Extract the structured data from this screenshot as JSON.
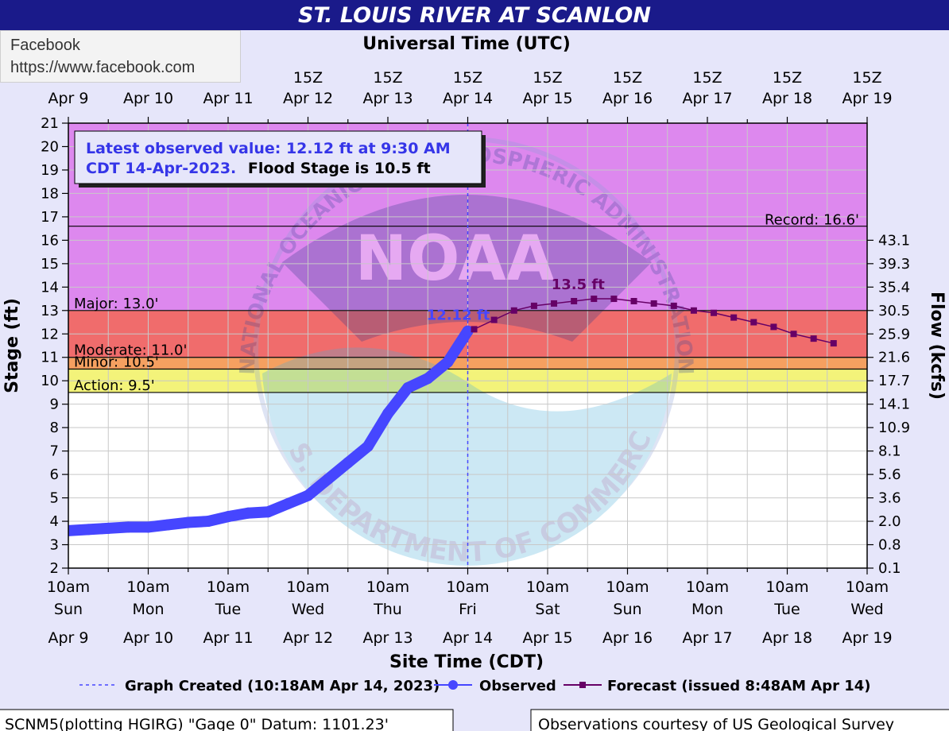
{
  "title": "ST. LOUIS RIVER AT SCANLON",
  "tooltip": {
    "site_name": "Facebook",
    "url": "https://www.facebook.com"
  },
  "colors": {
    "background": "#e6e6fa",
    "title_bar": "#1a1a8a",
    "observed": "#4646ff",
    "forecast": "#660066",
    "record_zone": "#dd88ee",
    "major_zone": "#e77aa0",
    "moderate_zone": "#f06c6c",
    "minor_zone": "#f5a060",
    "action_zone": "#f3f37a",
    "info_text_blue": "#3535e8"
  },
  "chart_data": {
    "type": "line",
    "title": "ST. LOUIS RIVER AT SCANLON",
    "top_axis_label": "Universal Time (UTC)",
    "xlabel": "Site Time (CDT)",
    "ylabel": "Stage (ft)",
    "y2label": "Flow (kcfs)",
    "ylim": [
      2,
      21
    ],
    "yticks": [
      2,
      3,
      4,
      5,
      6,
      7,
      8,
      9,
      10,
      11,
      12,
      13,
      14,
      15,
      16,
      17,
      18,
      19,
      20,
      21
    ],
    "x_days": 10,
    "top_ticks": [
      {
        "time": "",
        "date": "Apr  9"
      },
      {
        "time": "",
        "date": "Apr 10"
      },
      {
        "time": "",
        "date": "Apr 11"
      },
      {
        "time": "15Z",
        "date": "Apr 12"
      },
      {
        "time": "15Z",
        "date": "Apr 13"
      },
      {
        "time": "15Z",
        "date": "Apr 14"
      },
      {
        "time": "15Z",
        "date": "Apr 15"
      },
      {
        "time": "15Z",
        "date": "Apr 16"
      },
      {
        "time": "15Z",
        "date": "Apr 17"
      },
      {
        "time": "15Z",
        "date": "Apr 18"
      },
      {
        "time": "15Z",
        "date": "Apr 19"
      }
    ],
    "bottom_ticks": [
      {
        "time": "10am",
        "day": "Sun",
        "date": "Apr 9"
      },
      {
        "time": "10am",
        "day": "Mon",
        "date": "Apr 10"
      },
      {
        "time": "10am",
        "day": "Tue",
        "date": "Apr 11"
      },
      {
        "time": "10am",
        "day": "Wed",
        "date": "Apr 12"
      },
      {
        "time": "10am",
        "day": "Thu",
        "date": "Apr 13"
      },
      {
        "time": "10am",
        "day": "Fri",
        "date": "Apr 14"
      },
      {
        "time": "10am",
        "day": "Sat",
        "date": "Apr 15"
      },
      {
        "time": "10am",
        "day": "Sun",
        "date": "Apr 16"
      },
      {
        "time": "10am",
        "day": "Mon",
        "date": "Apr 17"
      },
      {
        "time": "10am",
        "day": "Tue",
        "date": "Apr 18"
      },
      {
        "time": "10am",
        "day": "Wed",
        "date": "Apr 19"
      }
    ],
    "flow_ticks": [
      {
        "stage": 2,
        "label": "0.1"
      },
      {
        "stage": 3,
        "label": "0.8"
      },
      {
        "stage": 4,
        "label": "2.0"
      },
      {
        "stage": 5,
        "label": "3.6"
      },
      {
        "stage": 6,
        "label": "5.6"
      },
      {
        "stage": 7,
        "label": "8.1"
      },
      {
        "stage": 8,
        "label": "10.9"
      },
      {
        "stage": 9,
        "label": "14.1"
      },
      {
        "stage": 10,
        "label": "17.7"
      },
      {
        "stage": 11,
        "label": "21.6"
      },
      {
        "stage": 12,
        "label": "25.9"
      },
      {
        "stage": 13,
        "label": "30.5"
      },
      {
        "stage": 14,
        "label": "35.4"
      },
      {
        "stage": 15,
        "label": "39.3"
      },
      {
        "stage": 16,
        "label": "43.1"
      }
    ],
    "zones": [
      {
        "name": "record",
        "from": 16.6,
        "to": 21,
        "color": "#dd88ee"
      },
      {
        "name": "major",
        "from": 13.0,
        "to": 16.6,
        "color": "#dd88ee"
      },
      {
        "name": "moderate",
        "from": 11.0,
        "to": 13.0,
        "color": "#f06c6c"
      },
      {
        "name": "minor",
        "from": 10.5,
        "to": 11.0,
        "color": "#f5a060"
      },
      {
        "name": "action",
        "from": 9.5,
        "to": 10.5,
        "color": "#f3f37a"
      }
    ],
    "thresholds": [
      {
        "name": "Record",
        "label": "Record: 16.6'",
        "value": 16.6,
        "side": "right"
      },
      {
        "name": "Major",
        "label": "Major: 13.0'",
        "value": 13.0,
        "side": "left"
      },
      {
        "name": "Moderate",
        "label": "Moderate: 11.0'",
        "value": 11.0,
        "side": "left"
      },
      {
        "name": "Minor",
        "label": "Minor: 10.5'",
        "value": 10.5,
        "side": "left"
      },
      {
        "name": "Action",
        "label": "Action: 9.5'",
        "value": 9.5,
        "side": "left"
      }
    ],
    "series": [
      {
        "name": "Observed",
        "color": "#4646ff",
        "x": [
          0,
          0.25,
          0.5,
          0.75,
          1.0,
          1.25,
          1.5,
          1.75,
          2.0,
          2.25,
          2.5,
          2.75,
          3.0,
          3.25,
          3.5,
          3.75,
          4.0,
          4.25,
          4.5,
          4.75,
          5.0
        ],
        "y": [
          3.6,
          3.65,
          3.7,
          3.75,
          3.75,
          3.85,
          3.95,
          4.0,
          4.2,
          4.35,
          4.4,
          4.75,
          5.1,
          5.8,
          6.5,
          7.2,
          8.6,
          9.7,
          10.1,
          10.8,
          12.12
        ]
      },
      {
        "name": "Forecast",
        "color": "#660066",
        "x": [
          5.08,
          5.33,
          5.58,
          5.83,
          6.08,
          6.33,
          6.58,
          6.83,
          7.08,
          7.33,
          7.58,
          7.83,
          8.08,
          8.33,
          8.58,
          8.83,
          9.08,
          9.33,
          9.58
        ],
        "y": [
          12.2,
          12.6,
          13.0,
          13.2,
          13.3,
          13.4,
          13.5,
          13.5,
          13.4,
          13.3,
          13.2,
          13.0,
          12.9,
          12.7,
          12.5,
          12.3,
          12.0,
          11.8,
          11.6
        ]
      }
    ],
    "created_x": 5.0,
    "observed_label": "12.12 ft",
    "crest_label": "13.5 ft",
    "info_box": {
      "line1": "Latest observed value: 12.12 ft at 9:30 AM",
      "line2_blue": "CDT 14-Apr-2023.",
      "line2_black": "Flood Stage is 10.5 ft"
    },
    "legend": {
      "created": "Graph Created (10:18AM Apr 14, 2023)",
      "observed": "Observed",
      "forecast": "Forecast (issued 8:48AM Apr 14)"
    },
    "watermark": {
      "logo": "NOAA",
      "text_top": "NATIONAL OCEANIC AND ATMOSPHERIC ADMINISTRATION",
      "text_bottom": "U.S. DEPARTMENT OF COMMERCE"
    }
  },
  "footer": {
    "left": "SCNM5(plotting HGIRG) \"Gage 0\" Datum: 1101.23'",
    "right": "Observations courtesy of US Geological Survey"
  }
}
